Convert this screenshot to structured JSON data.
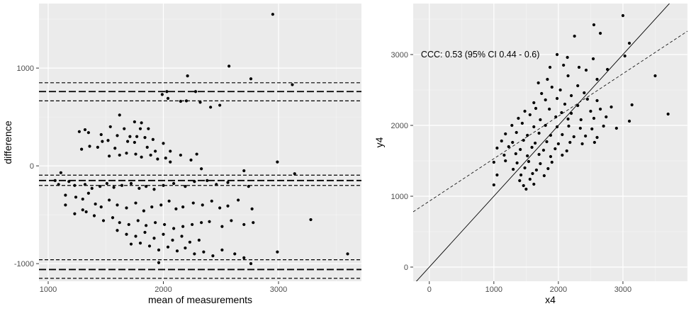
{
  "chart_data": [
    {
      "type": "scatter",
      "xlabel": "mean of measurements",
      "ylabel": "difference",
      "xlim": [
        920,
        3720
      ],
      "ylim": [
        -1180,
        1660
      ],
      "xticks": [
        1000,
        2000,
        3000
      ],
      "yticks": [
        -1000,
        0,
        1000
      ],
      "grid": true,
      "hlines": [
        {
          "y": 850,
          "style": "short-dash"
        },
        {
          "y": 760,
          "style": "long-dash"
        },
        {
          "y": 665,
          "style": "short-dash"
        },
        {
          "y": -95,
          "style": "short-dash"
        },
        {
          "y": -150,
          "style": "long-dash"
        },
        {
          "y": -200,
          "style": "short-dash"
        },
        {
          "y": -960,
          "style": "short-dash"
        },
        {
          "y": -1060,
          "style": "long-dash"
        },
        {
          "y": -1150,
          "style": "short-dash"
        }
      ],
      "points": [
        [
          2950,
          1550
        ],
        [
          2570,
          1020
        ],
        [
          2210,
          920
        ],
        [
          2760,
          890
        ],
        [
          3120,
          830
        ],
        [
          2280,
          760
        ],
        [
          2030,
          760
        ],
        [
          1990,
          730
        ],
        [
          2040,
          690
        ],
        [
          2200,
          665
        ],
        [
          2150,
          660
        ],
        [
          2320,
          650
        ],
        [
          2490,
          620
        ],
        [
          2410,
          600
        ],
        [
          1620,
          520
        ],
        [
          1750,
          450
        ],
        [
          1810,
          440
        ],
        [
          1540,
          400
        ],
        [
          1660,
          380
        ],
        [
          1800,
          380
        ],
        [
          1870,
          380
        ],
        [
          1320,
          370
        ],
        [
          1270,
          350
        ],
        [
          1350,
          340
        ],
        [
          1460,
          320
        ],
        [
          1600,
          310
        ],
        [
          1710,
          300
        ],
        [
          1770,
          300
        ],
        [
          1840,
          290
        ],
        [
          1910,
          270
        ],
        [
          1520,
          260
        ],
        [
          1470,
          250
        ],
        [
          1690,
          250
        ],
        [
          1750,
          240
        ],
        [
          2000,
          230
        ],
        [
          1360,
          200
        ],
        [
          1430,
          190
        ],
        [
          1580,
          180
        ],
        [
          1860,
          190
        ],
        [
          1290,
          170
        ],
        [
          1930,
          150
        ],
        [
          2060,
          150
        ],
        [
          1680,
          130
        ],
        [
          1760,
          120
        ],
        [
          1890,
          110
        ],
        [
          2150,
          110
        ],
        [
          2290,
          120
        ],
        [
          1530,
          100
        ],
        [
          1620,
          110
        ],
        [
          1810,
          90
        ],
        [
          2020,
          80
        ],
        [
          1950,
          70
        ],
        [
          2240,
          60
        ],
        [
          2060,
          40
        ],
        [
          2330,
          -30
        ],
        [
          2700,
          -50
        ],
        [
          3140,
          -80
        ],
        [
          1110,
          -70
        ],
        [
          1060,
          -150
        ],
        [
          1180,
          -160
        ],
        [
          1230,
          -200
        ],
        [
          1320,
          -190
        ],
        [
          1380,
          -230
        ],
        [
          1450,
          -210
        ],
        [
          1510,
          -180
        ],
        [
          1570,
          -220
        ],
        [
          1640,
          -200
        ],
        [
          1720,
          -180
        ],
        [
          1790,
          -230
        ],
        [
          1850,
          -210
        ],
        [
          1920,
          -240
        ],
        [
          2000,
          -200
        ],
        [
          2090,
          -180
        ],
        [
          2190,
          -210
        ],
        [
          2270,
          -160
        ],
        [
          2380,
          -150
        ],
        [
          2460,
          -190
        ],
        [
          2560,
          -170
        ],
        [
          2740,
          -210
        ],
        [
          2990,
          40
        ],
        [
          1150,
          -300
        ],
        [
          1240,
          -320
        ],
        [
          1300,
          -340
        ],
        [
          1350,
          -280
        ],
        [
          1410,
          -390
        ],
        [
          1460,
          -420
        ],
        [
          1530,
          -350
        ],
        [
          1600,
          -400
        ],
        [
          1680,
          -430
        ],
        [
          1760,
          -380
        ],
        [
          1830,
          -460
        ],
        [
          1900,
          -420
        ],
        [
          1980,
          -400
        ],
        [
          2050,
          -360
        ],
        [
          2110,
          -440
        ],
        [
          2170,
          -420
        ],
        [
          2260,
          -380
        ],
        [
          2340,
          -400
        ],
        [
          2420,
          -360
        ],
        [
          2490,
          -430
        ],
        [
          2560,
          -410
        ],
        [
          2650,
          -350
        ],
        [
          2770,
          -440
        ],
        [
          1230,
          -490
        ],
        [
          1330,
          -470
        ],
        [
          1400,
          -510
        ],
        [
          1480,
          -560
        ],
        [
          1560,
          -530
        ],
        [
          1620,
          -580
        ],
        [
          1700,
          -600
        ],
        [
          1780,
          -560
        ],
        [
          1850,
          -610
        ],
        [
          1930,
          -580
        ],
        [
          2010,
          -600
        ],
        [
          2090,
          -640
        ],
        [
          2170,
          -620
        ],
        [
          2250,
          -600
        ],
        [
          2330,
          -580
        ],
        [
          2400,
          -570
        ],
        [
          2510,
          -620
        ],
        [
          2590,
          -560
        ],
        [
          2700,
          -600
        ],
        [
          2780,
          -580
        ],
        [
          1600,
          -660
        ],
        [
          1680,
          -700
        ],
        [
          1760,
          -720
        ],
        [
          1840,
          -680
        ],
        [
          1920,
          -740
        ],
        [
          2000,
          -700
        ],
        [
          2080,
          -760
        ],
        [
          2160,
          -720
        ],
        [
          2230,
          -780
        ],
        [
          2310,
          -760
        ],
        [
          1720,
          -800
        ],
        [
          1800,
          -790
        ],
        [
          1880,
          -820
        ],
        [
          1960,
          -860
        ],
        [
          2040,
          -830
        ],
        [
          2120,
          -870
        ],
        [
          2190,
          -840
        ],
        [
          2270,
          -900
        ],
        [
          2350,
          -880
        ],
        [
          2430,
          -920
        ],
        [
          2510,
          -860
        ],
        [
          2620,
          -900
        ],
        [
          2700,
          -940
        ],
        [
          2760,
          -1000
        ],
        [
          1960,
          -990
        ],
        [
          2990,
          -880
        ],
        [
          3280,
          -550
        ],
        [
          3600,
          -900
        ],
        [
          1300,
          -450
        ],
        [
          1150,
          -400
        ],
        [
          1090,
          -190
        ]
      ]
    },
    {
      "type": "scatter",
      "xlabel": "x4",
      "ylabel": "y4",
      "xlim": [
        -250,
        4000
      ],
      "ylim": [
        -200,
        3720
      ],
      "xticks": [
        0,
        1000,
        2000,
        3000
      ],
      "yticks": [
        0,
        1000,
        2000,
        3000
      ],
      "grid": true,
      "annotation": {
        "text": "CCC: 0.53 (95% CI 0.44 - 0.6)",
        "x": -130,
        "y": 3000
      },
      "lines": [
        {
          "style": "solid",
          "intercept": 0,
          "slope": 1
        },
        {
          "style": "short-dash",
          "intercept": 930,
          "slope": 0.6
        }
      ],
      "points": [
        [
          3000,
          3550
        ],
        [
          2550,
          3420
        ],
        [
          2650,
          3300
        ],
        [
          3100,
          3160
        ],
        [
          2250,
          3260
        ],
        [
          1980,
          3000
        ],
        [
          2140,
          2960
        ],
        [
          2540,
          2940
        ],
        [
          2080,
          2850
        ],
        [
          3030,
          2980
        ],
        [
          2320,
          2820
        ],
        [
          1870,
          2820
        ],
        [
          2430,
          2780
        ],
        [
          2760,
          2790
        ],
        [
          2150,
          2700
        ],
        [
          1690,
          2600
        ],
        [
          1830,
          2650
        ],
        [
          2300,
          2560
        ],
        [
          2600,
          2650
        ],
        [
          3500,
          2700
        ],
        [
          1740,
          2450
        ],
        [
          1900,
          2540
        ],
        [
          2030,
          2500
        ],
        [
          2200,
          2420
        ],
        [
          2400,
          2460
        ],
        [
          1620,
          2320
        ],
        [
          1800,
          2360
        ],
        [
          1980,
          2380
        ],
        [
          2100,
          2300
        ],
        [
          2300,
          2280
        ],
        [
          2450,
          2370
        ],
        [
          2600,
          2350
        ],
        [
          1480,
          2200
        ],
        [
          1650,
          2240
        ],
        [
          1860,
          2230
        ],
        [
          2050,
          2180
        ],
        [
          2200,
          2170
        ],
        [
          2500,
          2200
        ],
        [
          2650,
          2230
        ],
        [
          2820,
          2260
        ],
        [
          3140,
          2290
        ],
        [
          1380,
          2100
        ],
        [
          1560,
          2150
        ],
        [
          1720,
          2080
        ],
        [
          1960,
          2120
        ],
        [
          2150,
          2090
        ],
        [
          2350,
          2080
        ],
        [
          2550,
          2100
        ],
        [
          2740,
          2120
        ],
        [
          3100,
          2060
        ],
        [
          1280,
          2000
        ],
        [
          1440,
          2030
        ],
        [
          1620,
          1980
        ],
        [
          1800,
          2000
        ],
        [
          1980,
          1980
        ],
        [
          2160,
          1990
        ],
        [
          2340,
          1960
        ],
        [
          2520,
          1950
        ],
        [
          2700,
          1990
        ],
        [
          2900,
          1960
        ],
        [
          1180,
          1880
        ],
        [
          1350,
          1900
        ],
        [
          1520,
          1860
        ],
        [
          1700,
          1890
        ],
        [
          1880,
          1860
        ],
        [
          2060,
          1870
        ],
        [
          2240,
          1840
        ],
        [
          2420,
          1850
        ],
        [
          2600,
          1830
        ],
        [
          1120,
          1780
        ],
        [
          1290,
          1760
        ],
        [
          1460,
          1790
        ],
        [
          1640,
          1750
        ],
        [
          1820,
          1770
        ],
        [
          2000,
          1740
        ],
        [
          2180,
          1760
        ],
        [
          2370,
          1740
        ],
        [
          2560,
          1760
        ],
        [
          1050,
          1680
        ],
        [
          1230,
          1700
        ],
        [
          1410,
          1660
        ],
        [
          1590,
          1690
        ],
        [
          1770,
          1650
        ],
        [
          1950,
          1670
        ],
        [
          2130,
          1640
        ],
        [
          1160,
          1580
        ],
        [
          1340,
          1600
        ],
        [
          1520,
          1570
        ],
        [
          1700,
          1590
        ],
        [
          1880,
          1560
        ],
        [
          2060,
          1580
        ],
        [
          1000,
          1480
        ],
        [
          1180,
          1500
        ],
        [
          1360,
          1470
        ],
        [
          1540,
          1490
        ],
        [
          1720,
          1460
        ],
        [
          1900,
          1480
        ],
        [
          1300,
          1380
        ],
        [
          1480,
          1400
        ],
        [
          1660,
          1370
        ],
        [
          1840,
          1390
        ],
        [
          1420,
          1300
        ],
        [
          1600,
          1320
        ],
        [
          1780,
          1290
        ],
        [
          1400,
          1220
        ],
        [
          1560,
          1240
        ],
        [
          1460,
          1150
        ],
        [
          1620,
          1170
        ],
        [
          1500,
          1100
        ],
        [
          1000,
          1160
        ],
        [
          1050,
          1300
        ],
        [
          3700,
          2160
        ]
      ]
    }
  ]
}
